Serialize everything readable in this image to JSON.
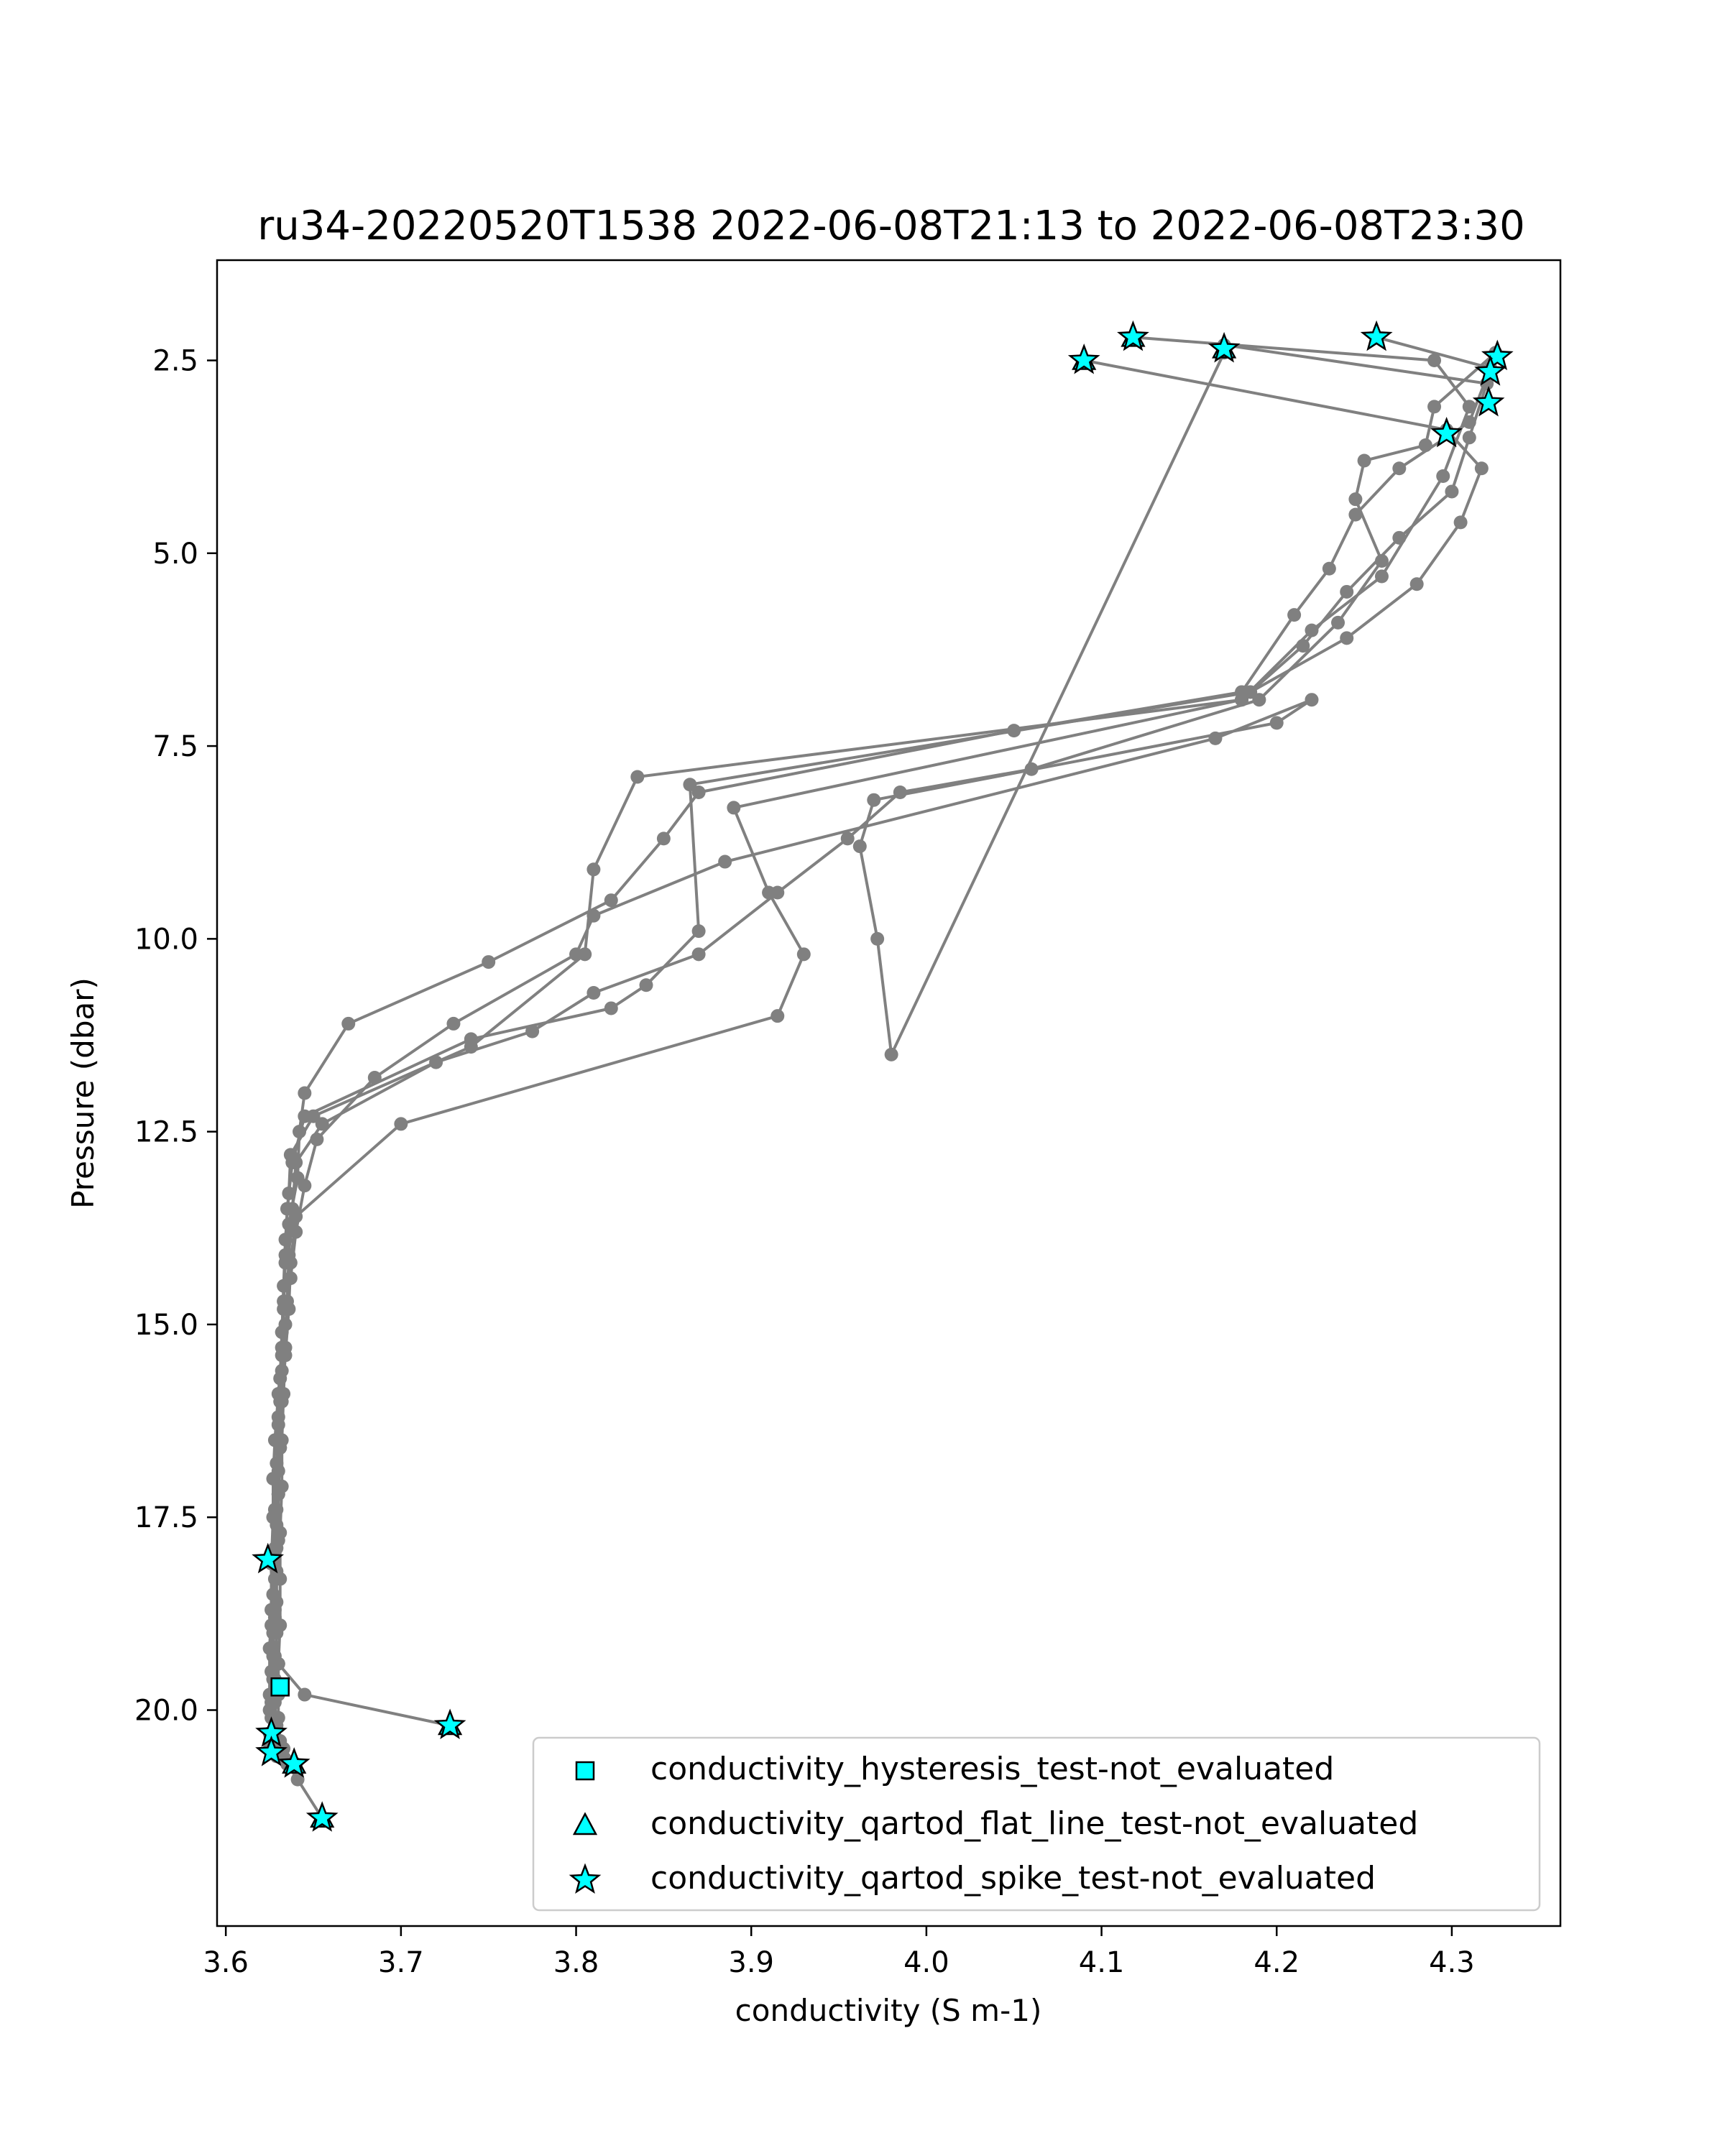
{
  "chart_data": {
    "type": "scatter",
    "title": "ru34-20220520T1538 2022-06-08T21:13 to 2022-06-08T23:30",
    "xlabel": "conductivity (S m-1)",
    "ylabel": "Pressure (dbar)",
    "xlim": [
      3.595,
      4.362
    ],
    "ylim": [
      22.8,
      1.2
    ],
    "y_inverted": true,
    "grid": false,
    "xticks": [
      3.6,
      3.7,
      3.8,
      3.9,
      4.0,
      4.1,
      4.2,
      4.3
    ],
    "xtick_labels": [
      "3.6",
      "3.7",
      "3.8",
      "3.9",
      "4.0",
      "4.1",
      "4.2",
      "4.3"
    ],
    "yticks": [
      2.5,
      5.0,
      7.5,
      10.0,
      12.5,
      15.0,
      17.5,
      20.0
    ],
    "ytick_labels": [
      "2.5",
      "5.0",
      "7.5",
      "10.0",
      "12.5",
      "15.0",
      "17.5",
      "20.0"
    ],
    "colors": {
      "profile_line": "#808080",
      "marker_fill": "#00ffff",
      "marker_edge": "#000000"
    },
    "profile_series": [
      {
        "x": [
          4.325,
          4.29,
          4.285,
          4.25,
          4.245,
          4.26,
          4.235,
          4.19,
          4.06,
          3.985,
          3.955,
          3.915,
          3.87,
          3.81,
          3.775,
          3.72,
          3.655,
          3.64,
          3.638,
          3.636,
          3.635,
          3.634,
          3.633,
          3.632,
          3.632,
          3.631,
          3.631,
          3.631,
          3.63,
          3.63,
          3.63,
          3.631,
          3.632,
          3.635,
          3.641,
          3.655
        ],
        "y": [
          2.4,
          3.1,
          3.6,
          3.8,
          4.3,
          5.1,
          5.9,
          6.9,
          7.8,
          8.1,
          8.7,
          9.4,
          10.2,
          10.7,
          11.2,
          11.6,
          12.4,
          12.9,
          13.5,
          14.1,
          14.7,
          15.3,
          15.9,
          16.5,
          17.1,
          17.7,
          18.3,
          18.9,
          19.4,
          19.8,
          20.1,
          20.4,
          20.6,
          20.7,
          20.9,
          21.4
        ]
      },
      {
        "x": [
          4.257,
          4.322,
          4.31,
          4.27,
          4.245,
          4.23,
          4.21,
          4.18,
          4.05,
          3.87,
          3.85,
          3.82,
          3.75,
          3.67,
          3.645,
          3.642,
          3.641,
          3.636,
          3.634,
          3.633,
          3.632,
          3.631,
          3.631,
          3.63,
          3.63,
          3.629,
          3.629,
          3.629,
          3.628,
          3.628,
          3.628,
          3.629,
          3.63,
          3.633,
          3.64
        ],
        "y": [
          2.2,
          2.6,
          3.3,
          3.9,
          4.5,
          5.2,
          5.8,
          6.8,
          7.3,
          8.1,
          8.7,
          9.5,
          10.3,
          11.1,
          12.0,
          12.5,
          13.1,
          13.7,
          14.2,
          14.8,
          15.4,
          16.0,
          16.6,
          17.2,
          17.8,
          18.2,
          18.6,
          19.0,
          19.3,
          19.6,
          19.9,
          20.2,
          20.4,
          20.5,
          20.7
        ]
      },
      {
        "x": [
          4.17,
          4.32,
          4.31,
          4.3,
          4.27,
          4.24,
          4.215,
          4.18,
          3.835,
          3.81,
          3.805,
          3.74,
          3.65,
          3.637,
          3.636,
          3.634,
          3.633,
          3.632,
          3.631,
          3.63,
          3.63,
          3.629,
          3.629,
          3.628,
          3.628,
          3.627,
          3.627,
          3.627,
          3.626,
          3.626,
          3.627,
          3.628,
          3.629
        ],
        "y": [
          2.3,
          2.8,
          3.5,
          4.2,
          4.8,
          5.5,
          6.2,
          6.9,
          7.9,
          9.1,
          10.2,
          11.4,
          12.3,
          12.8,
          13.3,
          13.9,
          14.5,
          15.1,
          15.7,
          16.3,
          16.9,
          17.4,
          17.9,
          18.3,
          18.7,
          19.0,
          19.3,
          19.6,
          19.9,
          20.1,
          20.3,
          20.5,
          20.6
        ]
      },
      {
        "x": [
          4.118,
          4.29,
          4.31,
          4.295,
          4.26,
          4.22,
          4.18,
          3.89,
          3.91,
          3.93,
          3.915,
          3.7,
          3.64,
          3.637,
          3.636,
          3.634,
          3.632,
          3.631,
          3.63,
          3.629,
          3.628,
          3.627,
          3.627,
          3.626,
          3.626,
          3.626,
          3.625,
          3.625,
          3.625
        ],
        "y": [
          2.2,
          2.5,
          3.1,
          4.0,
          5.3,
          6.0,
          6.9,
          8.3,
          9.4,
          10.2,
          11.0,
          12.4,
          13.6,
          14.2,
          14.8,
          15.4,
          16.0,
          16.6,
          17.2,
          17.6,
          17.9,
          18.1,
          18.5,
          18.9,
          19.2,
          19.5,
          19.8,
          20.0,
          20.3
        ]
      },
      {
        "x": [
          4.09,
          4.297,
          4.317,
          4.305,
          4.28,
          4.24,
          4.185,
          3.865,
          3.87,
          3.84,
          3.82,
          3.74,
          3.645,
          3.638,
          3.635,
          3.634,
          3.633,
          3.632,
          3.63,
          3.628,
          3.627,
          3.627,
          3.626,
          3.626,
          3.625,
          3.625
        ],
        "y": [
          2.5,
          3.4,
          3.9,
          4.6,
          5.4,
          6.1,
          6.8,
          8.0,
          9.9,
          10.6,
          10.9,
          11.3,
          12.3,
          12.9,
          13.5,
          14.1,
          14.7,
          15.3,
          15.9,
          16.5,
          17.0,
          17.5,
          18.1,
          18.7,
          19.2,
          20.5
        ]
      },
      {
        "x": [
          4.17,
          3.98,
          3.972,
          3.962,
          3.97,
          4.2,
          4.22,
          4.165,
          3.885,
          3.81,
          3.8,
          3.73,
          3.685,
          3.652,
          3.645,
          3.64,
          3.637,
          3.634,
          3.632,
          3.63,
          3.629,
          3.628,
          3.627,
          3.628,
          3.63,
          3.645,
          3.728
        ],
        "y": [
          2.4,
          11.5,
          10.0,
          8.8,
          8.2,
          7.2,
          6.9,
          7.4,
          9.0,
          9.7,
          10.2,
          11.1,
          11.8,
          12.6,
          13.2,
          13.8,
          14.4,
          15.0,
          15.6,
          16.2,
          16.8,
          17.4,
          18.0,
          18.8,
          19.4,
          19.8,
          20.2
        ]
      }
    ],
    "qc_flag_series": [
      {
        "name": "conductivity_hysteresis_test-not_evaluated",
        "marker": "square",
        "points": [
          [
            3.631,
            19.7
          ]
        ]
      },
      {
        "name": "conductivity_qartod_flat_line_test-not_evaluated",
        "marker": "triangle",
        "points": [
          [
            4.118,
            2.2
          ],
          [
            4.17,
            2.35
          ],
          [
            4.09,
            2.5
          ],
          [
            3.728,
            20.2
          ],
          [
            3.639,
            20.7
          ],
          [
            3.655,
            21.4
          ]
        ]
      },
      {
        "name": "conductivity_qartod_spike_test-not_evaluated",
        "marker": "star",
        "points": [
          [
            4.118,
            2.2
          ],
          [
            4.17,
            2.35
          ],
          [
            4.09,
            2.5
          ],
          [
            4.257,
            2.2
          ],
          [
            4.326,
            2.45
          ],
          [
            4.322,
            2.65
          ],
          [
            4.321,
            3.05
          ],
          [
            4.297,
            3.45
          ],
          [
            3.624,
            18.05
          ],
          [
            3.626,
            20.3
          ],
          [
            3.626,
            20.55
          ],
          [
            3.639,
            20.7
          ],
          [
            3.728,
            20.2
          ],
          [
            3.655,
            21.4
          ]
        ]
      }
    ],
    "legend": {
      "placement": "lower-right",
      "entries": [
        "conductivity_hysteresis_test-not_evaluated",
        "conductivity_qartod_flat_line_test-not_evaluated",
        "conductivity_qartod_spike_test-not_evaluated"
      ]
    }
  }
}
